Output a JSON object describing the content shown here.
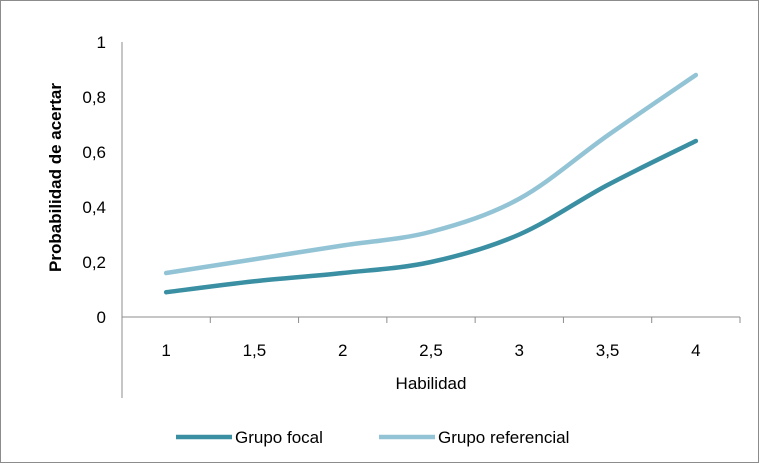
{
  "chart_data": {
    "type": "line",
    "x": [
      "1",
      "1,5",
      "2",
      "2,5",
      "3",
      "3,5",
      "4"
    ],
    "xlabel": "Habilidad",
    "ylabel": "Probabilidad de acertar",
    "ylim": [
      0,
      1
    ],
    "y_ticks": [
      "0",
      "0,2",
      "0,4",
      "0,6",
      "0,8",
      "1"
    ],
    "grid": false,
    "legend_position": "bottom",
    "series": [
      {
        "name": "Grupo focal",
        "color": "#3a8fa3",
        "values": [
          0.09,
          0.13,
          0.16,
          0.2,
          0.3,
          0.48,
          0.64
        ]
      },
      {
        "name": "Grupo referencial",
        "color": "#93c4d6",
        "values": [
          0.16,
          0.21,
          0.26,
          0.31,
          0.43,
          0.66,
          0.88
        ]
      }
    ]
  }
}
